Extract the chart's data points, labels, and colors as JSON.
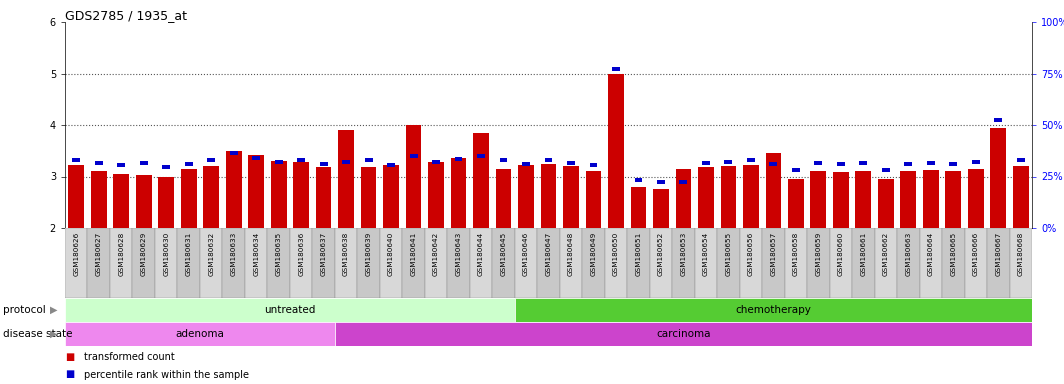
{
  "title": "GDS2785 / 1935_at",
  "samples": [
    "GSM180626",
    "GSM180627",
    "GSM180628",
    "GSM180629",
    "GSM180630",
    "GSM180631",
    "GSM180632",
    "GSM180633",
    "GSM180634",
    "GSM180635",
    "GSM180636",
    "GSM180637",
    "GSM180638",
    "GSM180639",
    "GSM180640",
    "GSM180641",
    "GSM180642",
    "GSM180643",
    "GSM180644",
    "GSM180645",
    "GSM180646",
    "GSM180647",
    "GSM180648",
    "GSM180649",
    "GSM180650",
    "GSM180651",
    "GSM180652",
    "GSM180653",
    "GSM180654",
    "GSM180655",
    "GSM180656",
    "GSM180657",
    "GSM180658",
    "GSM180659",
    "GSM180660",
    "GSM180661",
    "GSM180662",
    "GSM180663",
    "GSM180664",
    "GSM180665",
    "GSM180666",
    "GSM180667",
    "GSM180668"
  ],
  "transformed_counts": [
    3.22,
    3.1,
    3.05,
    3.02,
    3.0,
    3.15,
    3.2,
    3.5,
    3.42,
    3.3,
    3.28,
    3.18,
    3.9,
    3.18,
    3.22,
    4.0,
    3.28,
    3.35,
    3.85,
    3.15,
    3.22,
    3.25,
    3.2,
    3.1,
    5.0,
    2.8,
    2.75,
    3.15,
    3.18,
    3.2,
    3.22,
    3.45,
    2.95,
    3.1,
    3.08,
    3.1,
    2.95,
    3.1,
    3.12,
    3.1,
    3.15,
    3.95,
    3.2
  ],
  "percentile_y": [
    3.28,
    3.22,
    3.18,
    3.22,
    3.15,
    3.2,
    3.28,
    3.42,
    3.32,
    3.25,
    3.28,
    3.2,
    3.25,
    3.28,
    3.18,
    3.35,
    3.25,
    3.3,
    3.35,
    3.28,
    3.2,
    3.28,
    3.22,
    3.18,
    5.05,
    2.9,
    2.85,
    2.85,
    3.22,
    3.25,
    3.28,
    3.2,
    3.08,
    3.22,
    3.2,
    3.22,
    3.08,
    3.2,
    3.22,
    3.2,
    3.25,
    4.05,
    3.28
  ],
  "ymin": 2.0,
  "ymax": 6.0,
  "bar_color": "#cc0000",
  "percentile_color": "#0000cc",
  "protocol_untreated_count": 20,
  "adenoma_count": 12,
  "protocol_label_untreated": "untreated",
  "protocol_label_chemotherapy": "chemotherapy",
  "disease_label_adenoma": "adenoma",
  "disease_label_carcinoma": "carcinoma",
  "color_untreated": "#ccffcc",
  "color_chemotherapy": "#55cc33",
  "color_adenoma": "#ee88ee",
  "color_carcinoma": "#cc44cc",
  "protocol_row_label": "protocol",
  "disease_row_label": "disease state",
  "legend_red": "transformed count",
  "legend_blue": "percentile rank within the sample",
  "dotted_levels": [
    3,
    4,
    5
  ],
  "right_tick_labels": [
    "0%",
    "25%",
    "50%",
    "75%",
    "100%"
  ],
  "right_tick_values": [
    0,
    25,
    50,
    75,
    100
  ],
  "tick_bg_even": "#d8d8d8",
  "tick_bg_odd": "#c8c8c8",
  "tick_border": "#888888"
}
